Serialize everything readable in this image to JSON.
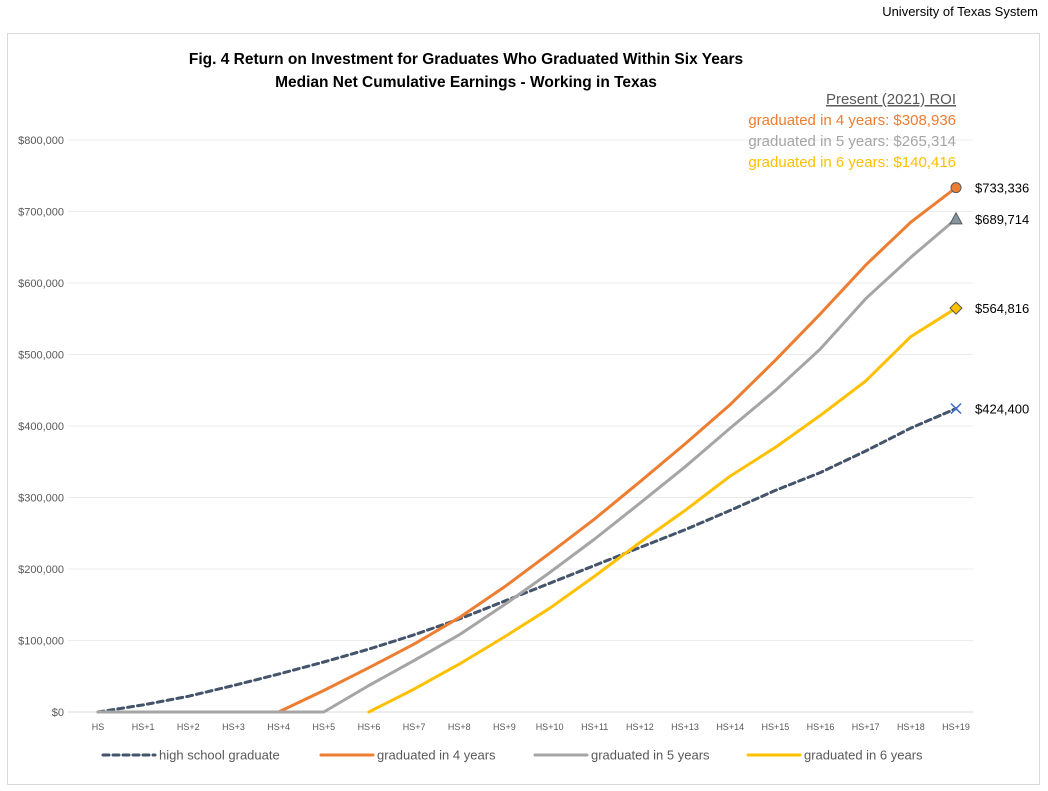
{
  "source_label": "University of Texas System",
  "chart_data": {
    "type": "line",
    "title": "Fig. 4 Return on Investment for Graduates Who Graduated Within Six Years",
    "subtitle": "Median Net Cumulative Earnings - Working in Texas",
    "categories": [
      "HS",
      "HS+1",
      "HS+2",
      "HS+3",
      "HS+4",
      "HS+5",
      "HS+6",
      "HS+7",
      "HS+8",
      "HS+9",
      "HS+10",
      "HS+11",
      "HS+12",
      "HS+13",
      "HS+14",
      "HS+15",
      "HS+16",
      "HS+17",
      "HS+18",
      "HS+19"
    ],
    "y_ticks": [
      "$0",
      "$100,000",
      "$200,000",
      "$300,000",
      "$400,000",
      "$500,000",
      "$600,000",
      "$700,000",
      "$800,000"
    ],
    "ylim": [
      0,
      800000
    ],
    "grid": true,
    "legend_position": "bottom",
    "series": [
      {
        "name": "high school graduate",
        "color": "#44546a",
        "dash": true,
        "marker": "x",
        "end_label": "$424,400",
        "values": [
          0,
          10000,
          22000,
          37000,
          53000,
          70000,
          88000,
          108000,
          130000,
          155000,
          180000,
          205000,
          230000,
          255000,
          282000,
          310000,
          335000,
          365000,
          397000,
          424400
        ]
      },
      {
        "name": "graduated in 4 years",
        "color": "#ed7d31",
        "dash": false,
        "marker": "circle",
        "end_label": "$733,336",
        "values": [
          0,
          0,
          0,
          0,
          0,
          30000,
          62000,
          95000,
          132000,
          175000,
          222000,
          270000,
          322000,
          375000,
          430000,
          492000,
          557000,
          625000,
          685000,
          733336
        ]
      },
      {
        "name": "graduated in 5 years",
        "color": "#a5a5a5",
        "dash": false,
        "marker": "triangle",
        "end_label": "$689,714",
        "values": [
          0,
          0,
          0,
          0,
          0,
          0,
          37000,
          72000,
          108000,
          150000,
          195000,
          242000,
          292000,
          343000,
          397000,
          450000,
          508000,
          578000,
          636000,
          689714
        ]
      },
      {
        "name": "graduated in 6 years",
        "color": "#ffc000",
        "dash": false,
        "marker": "diamond",
        "end_label": "$564,816",
        "values": [
          null,
          null,
          null,
          null,
          null,
          null,
          0,
          32000,
          67000,
          105000,
          145000,
          190000,
          237000,
          282000,
          330000,
          370000,
          415000,
          463000,
          525000,
          564816
        ]
      }
    ],
    "roi_box": {
      "heading": "Present (2021) ROI",
      "items": [
        {
          "text": "graduated in 4 years: $308,936",
          "color": "#ed7d31"
        },
        {
          "text": "graduated in 5 years: $265,314",
          "color": "#a5a5a5"
        },
        {
          "text": "graduated in 6 years: $140,416",
          "color": "#ffc000"
        }
      ]
    }
  }
}
